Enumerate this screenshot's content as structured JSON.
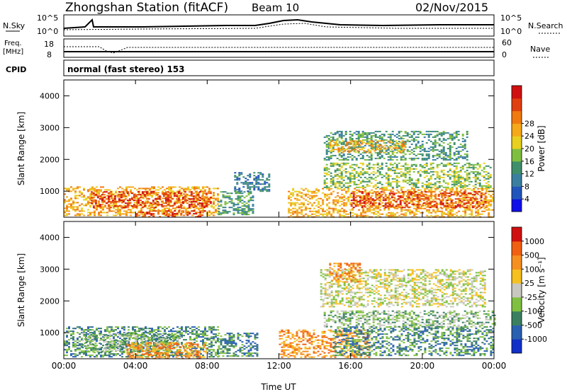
{
  "header": {
    "title": "Zhongshan Station (fitACF)",
    "beam": "Beam 10",
    "date": "02/Nov/2015"
  },
  "strips": {
    "nsky_label": "N.Sky",
    "nsearch_label": "N.Search",
    "freq_label_1": "Freq.",
    "freq_label_2": "[MHz]",
    "nave_label": "Nave",
    "cpid_label": "CPID",
    "cpid_text": "normal (fast stereo) 153",
    "nsky_ticks": [
      "10^5",
      "10^0"
    ],
    "nsearch_ticks": [
      "10^5",
      "10^0"
    ],
    "freq_ticks": [
      "18",
      "8"
    ],
    "nave_ticks": [
      "60",
      "0"
    ]
  },
  "chart_data": [
    {
      "type": "heatmap",
      "panel": "power",
      "ylabel": "Slant Range [km]",
      "ylim": [
        180,
        4500
      ],
      "yticks": [
        1000,
        2000,
        3000,
        4000
      ],
      "xlim": [
        0,
        24
      ],
      "xtick_labels": [
        "00:00",
        "04:00",
        "08:00",
        "12:00",
        "16:00",
        "20:00",
        "00:00"
      ],
      "colorbar": {
        "label": "Power [dB]",
        "tick_labels": [
          "4",
          "8",
          "12",
          "16",
          "20",
          "24",
          "28"
        ],
        "colors": [
          "#1010e8",
          "#2255bb",
          "#3a7fa0",
          "#3f8f6a",
          "#7fbf3f",
          "#e8d020",
          "#f5a81a",
          "#f07a10",
          "#e04010",
          "#d01010"
        ]
      },
      "blobs": [
        {
          "t0": 0.0,
          "t1": 8.6,
          "r0": 250,
          "r1": 1150,
          "level": 6
        },
        {
          "t0": 1.5,
          "t1": 8.2,
          "r0": 500,
          "r1": 1000,
          "level": 8
        },
        {
          "t0": 4.0,
          "t1": 7.8,
          "r0": 180,
          "r1": 400,
          "level": 8
        },
        {
          "t0": 8.6,
          "t1": 10.5,
          "r0": 250,
          "r1": 1000,
          "level": 3
        },
        {
          "t0": 9.5,
          "t1": 11.5,
          "r0": 1000,
          "r1": 1600,
          "level": 2
        },
        {
          "t0": 12.5,
          "t1": 24.0,
          "r0": 200,
          "r1": 1100,
          "level": 6
        },
        {
          "t0": 16.0,
          "t1": 23.5,
          "r0": 500,
          "r1": 1000,
          "level": 8
        },
        {
          "t0": 14.5,
          "t1": 23.8,
          "r0": 1100,
          "r1": 1900,
          "level": 4
        },
        {
          "t0": 14.5,
          "t1": 22.5,
          "r0": 2000,
          "r1": 2900,
          "level": 3
        },
        {
          "t0": 14.8,
          "t1": 19.0,
          "r0": 2200,
          "r1": 2600,
          "level": 6
        }
      ]
    },
    {
      "type": "heatmap",
      "panel": "velocity",
      "ylabel": "Slant Range [km]",
      "xlabel": "Time UT",
      "ylim": [
        180,
        4500
      ],
      "yticks": [
        1000,
        2000,
        3000,
        4000
      ],
      "xlim": [
        0,
        24
      ],
      "xtick_labels": [
        "00:00",
        "04:00",
        "08:00",
        "12:00",
        "16:00",
        "20:00",
        "00:00"
      ],
      "colorbar": {
        "label": "Velocity [m s⁻¹]",
        "tick_labels": [
          "1000",
          "500",
          "100",
          "25",
          "-25",
          "-100",
          "-500",
          "-1000"
        ],
        "colors": [
          "#1030c8",
          "#2a60b0",
          "#3a8060",
          "#80c040",
          "#c8c8c0",
          "#f5c020",
          "#f59020",
          "#f06010",
          "#d01010"
        ]
      },
      "blobs": [
        {
          "t0": 0.0,
          "t1": 8.6,
          "r0": 250,
          "r1": 1200,
          "level": 2
        },
        {
          "t0": 1.0,
          "t1": 6.5,
          "r0": 400,
          "r1": 1000,
          "level": 3
        },
        {
          "t0": 3.5,
          "t1": 8.0,
          "r0": 180,
          "r1": 700,
          "level": 6
        },
        {
          "t0": 8.6,
          "t1": 10.8,
          "r0": 250,
          "r1": 1000,
          "level": 2
        },
        {
          "t0": 12.0,
          "t1": 17.0,
          "r0": 250,
          "r1": 1100,
          "level": 6
        },
        {
          "t0": 15.0,
          "t1": 24.0,
          "r0": 300,
          "r1": 1200,
          "level": 2
        },
        {
          "t0": 14.5,
          "t1": 24.0,
          "r0": 1200,
          "r1": 1700,
          "level": 3
        },
        {
          "t0": 14.3,
          "t1": 23.5,
          "r0": 1800,
          "r1": 3000,
          "level": 4
        },
        {
          "t0": 14.8,
          "t1": 16.5,
          "r0": 2600,
          "r1": 3200,
          "level": 6
        }
      ]
    }
  ]
}
